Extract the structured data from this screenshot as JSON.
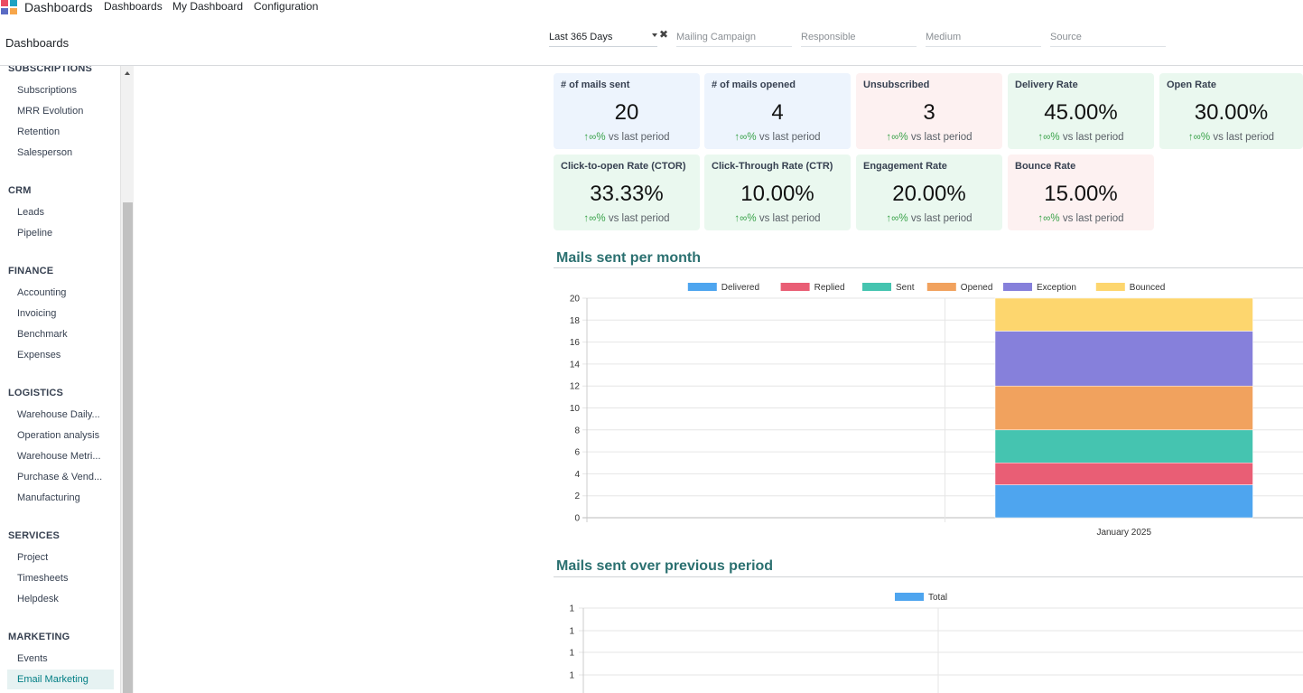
{
  "app": {
    "title": "Dashboards",
    "logo_colors": [
      "#ea4b63",
      "#1fa2c1",
      "#5a6bc4",
      "#f7a64a"
    ]
  },
  "nav": [
    {
      "label": "Dashboards"
    },
    {
      "label": "My Dashboard"
    },
    {
      "label": "Configuration"
    }
  ],
  "breadcrumb": "Dashboards",
  "filters": {
    "period": "Last 365 Days",
    "mailing_campaign": "Mailing Campaign",
    "responsible": "Responsible",
    "medium": "Medium",
    "source": "Source"
  },
  "sidebar": {
    "sections": [
      {
        "title": "SUBSCRIPTIONS",
        "items": [
          "Subscriptions",
          "MRR Evolution",
          "Retention",
          "Salesperson"
        ]
      },
      {
        "title": "CRM",
        "items": [
          "Leads",
          "Pipeline"
        ]
      },
      {
        "title": "FINANCE",
        "items": [
          "Accounting",
          "Invoicing",
          "Benchmark",
          "Expenses"
        ]
      },
      {
        "title": "LOGISTICS",
        "items": [
          "Warehouse Daily...",
          "Operation analysis",
          "Warehouse Metri...",
          "Purchase & Vend...",
          "Manufacturing"
        ]
      },
      {
        "title": "SERVICES",
        "items": [
          "Project",
          "Timesheets",
          "Helpdesk"
        ]
      },
      {
        "title": "MARKETING",
        "items": [
          "Events",
          "Email Marketing"
        ]
      }
    ],
    "active_item": "Email Marketing"
  },
  "kpis": [
    {
      "title": "# of mails sent",
      "value": "20",
      "change": "∞%",
      "suffix": "vs last period",
      "tone": "blue"
    },
    {
      "title": "# of mails opened",
      "value": "4",
      "change": "∞%",
      "suffix": "vs last period",
      "tone": "blue"
    },
    {
      "title": "Unsubscribed",
      "value": "3",
      "change": "∞%",
      "suffix": "vs last period",
      "tone": "red"
    },
    {
      "title": "Delivery Rate",
      "value": "45.00%",
      "change": "∞%",
      "suffix": "vs last period",
      "tone": "green"
    },
    {
      "title": "Open Rate",
      "value": "30.00%",
      "change": "∞%",
      "suffix": "vs last period",
      "tone": "green"
    },
    {
      "title": "Click-to-open Rate (CTOR)",
      "value": "33.33%",
      "change": "∞%",
      "suffix": "vs last period",
      "tone": "green"
    },
    {
      "title": "Click-Through Rate (CTR)",
      "value": "10.00%",
      "change": "∞%",
      "suffix": "vs last period",
      "tone": "green"
    },
    {
      "title": "Engagement Rate",
      "value": "20.00%",
      "change": "∞%",
      "suffix": "vs last period",
      "tone": "green"
    },
    {
      "title": "Bounce Rate",
      "value": "15.00%",
      "change": "∞%",
      "suffix": "vs last period",
      "tone": "red"
    }
  ],
  "sections": {
    "chart1_title": "Mails sent per month",
    "chart2_title": "Mails sent over previous period"
  },
  "chart_data": [
    {
      "type": "bar",
      "stacked": true,
      "title": "Mails sent per month",
      "categories": [
        "",
        "January 2025"
      ],
      "series": [
        {
          "name": "Delivered",
          "color": "#4ea5ef",
          "values": [
            0,
            3
          ]
        },
        {
          "name": "Replied",
          "color": "#e95e75",
          "values": [
            0,
            2
          ]
        },
        {
          "name": "Sent",
          "color": "#45c4b0",
          "values": [
            0,
            3
          ]
        },
        {
          "name": "Opened",
          "color": "#f1a25e",
          "values": [
            0,
            4
          ]
        },
        {
          "name": "Exception",
          "color": "#8680db",
          "values": [
            0,
            5
          ]
        },
        {
          "name": "Bounced",
          "color": "#fdd66e",
          "values": [
            0,
            3
          ]
        }
      ],
      "ylim": [
        0,
        20
      ],
      "yticks": [
        0,
        2,
        4,
        6,
        8,
        10,
        12,
        14,
        16,
        18,
        20
      ],
      "legend": "top",
      "grid": true
    },
    {
      "type": "bar",
      "title": "Mails sent over previous period",
      "categories": [],
      "series": [
        {
          "name": "Total",
          "color": "#4ea5ef",
          "values": []
        }
      ],
      "ytick_labels": [
        "1",
        "1",
        "1",
        "1"
      ],
      "legend": "top",
      "grid": true
    }
  ]
}
